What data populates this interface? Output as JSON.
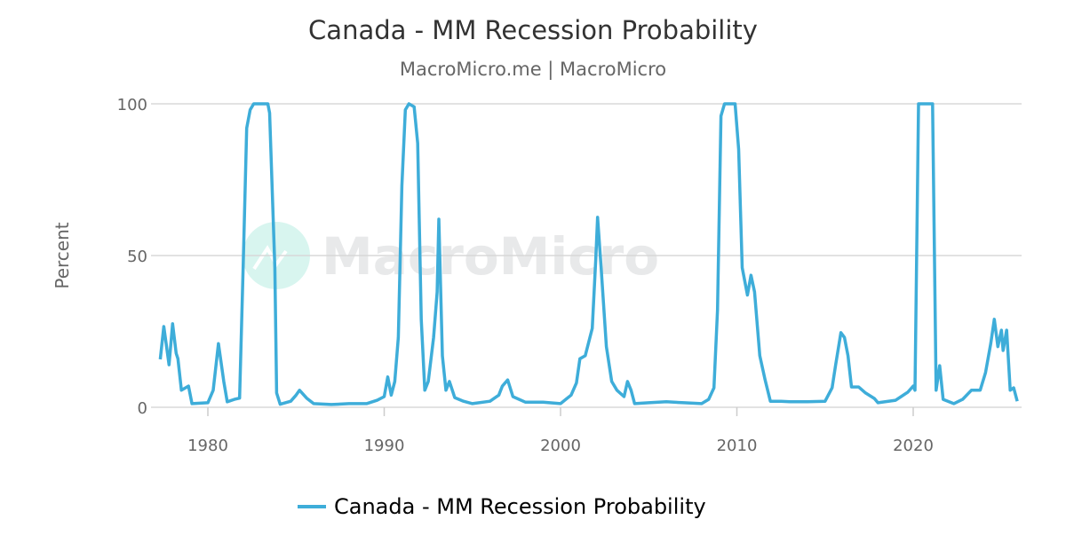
{
  "chart_data": {
    "type": "line",
    "title": "Canada - MM Recession Probability",
    "subtitle": "MacroMicro.me | MacroMicro",
    "xlabel": "",
    "ylabel": "Percent",
    "xlim": [
      1977,
      2026.2
    ],
    "ylim": [
      0,
      100
    ],
    "x_ticks": [
      "1980",
      "1990",
      "2000",
      "2010",
      "2020"
    ],
    "y_ticks": [
      "0",
      "50",
      "100"
    ],
    "grid": "horizontal",
    "legend_position": "bottom",
    "watermark": "MacroMicro",
    "series": [
      {
        "name": "Canada - MM Recession Probability",
        "color": "#3eadd9",
        "points": [
          [
            1977.3,
            15.8
          ],
          [
            1977.5,
            26.6
          ],
          [
            1977.8,
            14
          ],
          [
            1978.0,
            27.5
          ],
          [
            1978.2,
            17.8
          ],
          [
            1978.3,
            16
          ],
          [
            1978.5,
            5.6
          ],
          [
            1978.9,
            7
          ],
          [
            1979.1,
            1.2
          ],
          [
            1980.0,
            1.5
          ],
          [
            1980.3,
            5.6
          ],
          [
            1980.6,
            21
          ],
          [
            1980.9,
            8.5
          ],
          [
            1981.1,
            1.8
          ],
          [
            1981.5,
            2.6
          ],
          [
            1981.8,
            3
          ],
          [
            1982.0,
            46
          ],
          [
            1982.2,
            92
          ],
          [
            1982.4,
            98
          ],
          [
            1982.6,
            100
          ],
          [
            1983.4,
            100
          ],
          [
            1983.5,
            97
          ],
          [
            1983.8,
            46
          ],
          [
            1983.9,
            4.7
          ],
          [
            1984.1,
            1
          ],
          [
            1984.7,
            2
          ],
          [
            1985.0,
            4
          ],
          [
            1985.2,
            5.6
          ],
          [
            1985.6,
            3
          ],
          [
            1986,
            1.2
          ],
          [
            1987,
            0.9
          ],
          [
            1988,
            1.2
          ],
          [
            1989,
            1.2
          ],
          [
            1989.6,
            2.3
          ],
          [
            1990.0,
            3.5
          ],
          [
            1990.2,
            10
          ],
          [
            1990.4,
            4
          ],
          [
            1990.6,
            8.5
          ],
          [
            1990.8,
            23
          ],
          [
            1991.0,
            73
          ],
          [
            1991.2,
            98
          ],
          [
            1991.4,
            100
          ],
          [
            1991.7,
            99
          ],
          [
            1991.9,
            87
          ],
          [
            1992.1,
            29
          ],
          [
            1992.3,
            5.6
          ],
          [
            1992.5,
            8.5
          ],
          [
            1992.8,
            23
          ],
          [
            1993.0,
            38
          ],
          [
            1993.1,
            62
          ],
          [
            1993.3,
            17
          ],
          [
            1993.5,
            5.6
          ],
          [
            1993.7,
            8.5
          ],
          [
            1994.0,
            3.2
          ],
          [
            1994.5,
            2
          ],
          [
            1995,
            1.2
          ],
          [
            1996,
            2
          ],
          [
            1996.5,
            4
          ],
          [
            1996.7,
            7
          ],
          [
            1997,
            9
          ],
          [
            1997.3,
            3.5
          ],
          [
            1998,
            1.7
          ],
          [
            1999,
            1.7
          ],
          [
            2000,
            1.2
          ],
          [
            2000.6,
            4
          ],
          [
            2000.9,
            8
          ],
          [
            2001.1,
            16
          ],
          [
            2001.4,
            17
          ],
          [
            2001.8,
            26
          ],
          [
            2002.0,
            49
          ],
          [
            2002.1,
            62.6
          ],
          [
            2002.3,
            46
          ],
          [
            2002.6,
            20
          ],
          [
            2002.9,
            8.5
          ],
          [
            2003.2,
            5.6
          ],
          [
            2003.6,
            3.5
          ],
          [
            2003.8,
            8.5
          ],
          [
            2004.0,
            5.6
          ],
          [
            2004.2,
            1.2
          ],
          [
            2005,
            1.5
          ],
          [
            2006,
            1.8
          ],
          [
            2007,
            1.5
          ],
          [
            2008,
            1.2
          ],
          [
            2008.4,
            2.6
          ],
          [
            2008.7,
            6.4
          ],
          [
            2008.9,
            32
          ],
          [
            2009.1,
            96
          ],
          [
            2009.3,
            100
          ],
          [
            2009.9,
            100
          ],
          [
            2010.1,
            85
          ],
          [
            2010.3,
            46
          ],
          [
            2010.6,
            37
          ],
          [
            2010.8,
            43.5
          ],
          [
            2011.0,
            38
          ],
          [
            2011.3,
            17
          ],
          [
            2011.6,
            9
          ],
          [
            2011.9,
            2
          ],
          [
            2012.5,
            2
          ],
          [
            2013,
            1.8
          ],
          [
            2014,
            1.8
          ],
          [
            2015,
            2
          ],
          [
            2015.4,
            6.4
          ],
          [
            2015.6,
            14
          ],
          [
            2015.9,
            24.6
          ],
          [
            2016.1,
            23
          ],
          [
            2016.3,
            17
          ],
          [
            2016.5,
            6.7
          ],
          [
            2016.9,
            6.7
          ],
          [
            2017.3,
            4.7
          ],
          [
            2017.8,
            2.9
          ],
          [
            2018,
            1.5
          ],
          [
            2019,
            2.3
          ],
          [
            2019.7,
            5
          ],
          [
            2020.0,
            7
          ],
          [
            2020.1,
            5.6
          ],
          [
            2020.3,
            100
          ],
          [
            2021.1,
            100
          ],
          [
            2021.3,
            5.6
          ],
          [
            2021.5,
            13.7
          ],
          [
            2021.7,
            2.6
          ],
          [
            2022.3,
            1.2
          ],
          [
            2022.8,
            2.6
          ],
          [
            2023.3,
            5.6
          ],
          [
            2023.8,
            5.6
          ],
          [
            2024.1,
            11.4
          ],
          [
            2024.4,
            21
          ],
          [
            2024.6,
            29
          ],
          [
            2024.8,
            20
          ],
          [
            2025.0,
            25.4
          ],
          [
            2025.1,
            18.7
          ],
          [
            2025.3,
            25.4
          ],
          [
            2025.5,
            5.6
          ],
          [
            2025.7,
            6.4
          ],
          [
            2025.9,
            2
          ]
        ]
      }
    ]
  }
}
